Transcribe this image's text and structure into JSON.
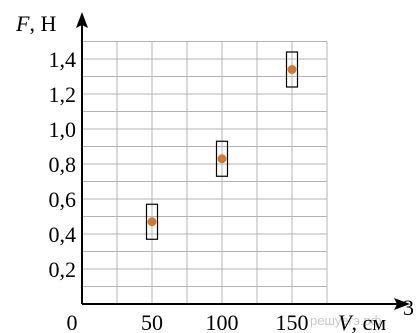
{
  "chart_data": {
    "type": "scatter",
    "title": "",
    "ylabel": {
      "symbol": "F",
      "unit": "Н"
    },
    "xlabel": {
      "symbol": "V",
      "unit": "см",
      "unit_power": "3"
    },
    "x_ticks": [
      "50",
      "100",
      "150"
    ],
    "y_ticks": [
      "0,2",
      "0,4",
      "0,6",
      "0,8",
      "1,0",
      "1,2",
      "1,4"
    ],
    "origin_label": "0",
    "xlim": [
      0,
      175
    ],
    "ylim": [
      0,
      1.5
    ],
    "grid": true,
    "points": [
      {
        "x": 50,
        "y": 0.47,
        "err_low": 0.37,
        "err_high": 0.57
      },
      {
        "x": 100,
        "y": 0.83,
        "err_low": 0.73,
        "err_high": 0.93
      },
      {
        "x": 150,
        "y": 1.34,
        "err_low": 1.24,
        "err_high": 1.44
      }
    ],
    "point_color": "#d07a2a",
    "error_box_color": "#000000"
  },
  "watermark": "решуегэ.рф"
}
